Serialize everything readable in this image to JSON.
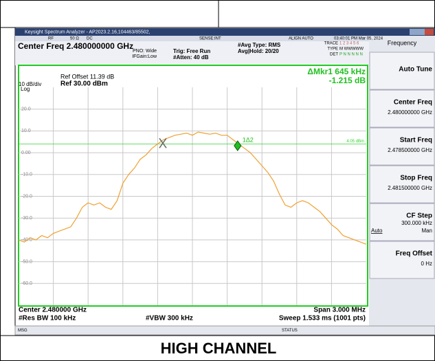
{
  "caption": "HIGH CHANNEL",
  "window": {
    "title": "Keysight Spectrum Analyzer - AP2023.2.16,104463/85502,"
  },
  "status_bar": [
    "RF",
    "50 Ω",
    "DC",
    "SENSE:INT",
    "ALIGN AUTO",
    "03:40:01 PM Mar 05, 2024"
  ],
  "settings": {
    "center_freq": "Center Freq 2.480000000 GHz",
    "pno": "PNO: Wide",
    "ifgain": "IFGain:Low",
    "trig": "Trig: Free Run",
    "atten": "#Atten: 40 dB",
    "avg_type": "#Avg Type: RMS",
    "avg_hold": "Avg|Hold: 20/20",
    "trace_label": "TRACE",
    "trace": "1 2 3 4 5 6",
    "type_label": "TYPE",
    "type": "M WWWWW",
    "det_label": "DET",
    "det": "P N N N N N"
  },
  "softkeys": {
    "menu": "Frequency",
    "keys": [
      {
        "label": "Auto Tune"
      },
      {
        "label": "Center Freq",
        "value": "2.480000000 GHz"
      },
      {
        "label": "Start Freq",
        "value": "2.478500000 GHz"
      },
      {
        "label": "Stop Freq",
        "value": "2.481500000 GHz"
      },
      {
        "label": "CF Step",
        "value": "300.000 kHz",
        "options": [
          "Auto",
          "Man"
        ]
      },
      {
        "label": "Freq Offset",
        "value": "0 Hz"
      }
    ]
  },
  "chart_data": {
    "type": "line",
    "ref_offset": "Ref Offset 11.39 dB",
    "scale": "10 dB/div",
    "ref_level": "Ref 30.00 dBm",
    "scale_type": "Log",
    "marker_readout": "ΔMkr1 645 kHz",
    "marker_delta": "-1.215 dB",
    "footer": {
      "center": "Center 2.480000 GHz",
      "span": "Span 3.000 MHz",
      "rbw": "#Res BW 100 kHz",
      "vbw": "#VBW 300 kHz",
      "sweep": "Sweep  1.533 ms (1001 pts)"
    },
    "x": [
      2478.5,
      2478.55,
      2478.6,
      2478.65,
      2478.7,
      2478.75,
      2478.8,
      2478.85,
      2478.9,
      2478.95,
      2479.0,
      2479.05,
      2479.1,
      2479.15,
      2479.2,
      2479.25,
      2479.3,
      2479.35,
      2479.4,
      2479.45,
      2479.5,
      2479.55,
      2479.6,
      2479.65,
      2479.7,
      2479.75,
      2479.8,
      2479.85,
      2479.9,
      2479.95,
      2480.0,
      2480.05,
      2480.1,
      2480.15,
      2480.2,
      2480.25,
      2480.3,
      2480.35,
      2480.4,
      2480.45,
      2480.5,
      2480.55,
      2480.6,
      2480.65,
      2480.7,
      2480.75,
      2480.8,
      2480.85,
      2480.9,
      2480.95,
      2481.0,
      2481.05,
      2481.1,
      2481.15,
      2481.2,
      2481.25,
      2481.3,
      2481.35,
      2481.4,
      2481.45,
      2481.5
    ],
    "values": [
      -40,
      -41,
      -39,
      -40,
      -38,
      -39,
      -37,
      -36,
      -35,
      -34,
      -30,
      -25,
      -23,
      -24,
      -23,
      -25,
      -26,
      -22,
      -14,
      -10,
      -7,
      -3,
      -1,
      2,
      4,
      6,
      7,
      8,
      8.5,
      9,
      8,
      9.5,
      9,
      8.5,
      9,
      8,
      8,
      6,
      4,
      2,
      0,
      -3,
      -6,
      -9,
      -13,
      -19,
      -24,
      -25,
      -23,
      -22,
      -23,
      -25,
      -27,
      -30,
      -33,
      -35,
      -38,
      -39,
      -40,
      -41,
      -42
    ],
    "color": "#f0a030",
    "xlim": [
      2478.5,
      2481.5
    ],
    "ylim": [
      -70,
      30
    ],
    "yticks": [
      {
        "value": 20,
        "label": "20.0"
      },
      {
        "value": 10,
        "label": "10.0"
      },
      {
        "value": 0,
        "label": "0.00"
      },
      {
        "value": -10,
        "label": "-10.0"
      },
      {
        "value": -20,
        "label": "-20.0"
      },
      {
        "value": -30,
        "label": "-30.0"
      },
      {
        "value": -40,
        "label": "-40.0"
      },
      {
        "value": -50,
        "label": "-50.0"
      },
      {
        "value": -60,
        "label": "-60.0"
      }
    ],
    "grid": true,
    "display_line": {
      "value": 4.05,
      "label": "4.05 dBm"
    },
    "markers": [
      {
        "label": "1Δ2",
        "x": 2480.39,
        "y": 3.2
      },
      {
        "x": 2479.745,
        "y": 4.4
      }
    ]
  },
  "message_bar": {
    "msg": "MSG",
    "status": "STATUS"
  }
}
